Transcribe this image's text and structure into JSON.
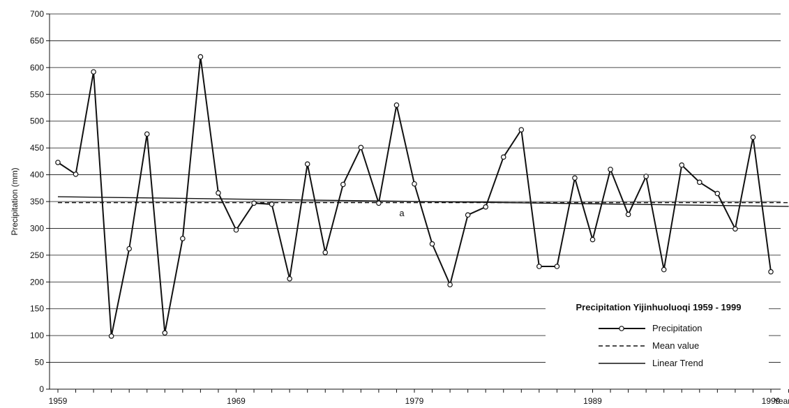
{
  "chart_data": {
    "type": "line",
    "title": "Precipitation Yijinhuoluoqi 1959 - 1999",
    "xlabel": "Year",
    "ylabel": "Precipitation (mm)",
    "ylim": [
      0,
      700
    ],
    "xlim": [
      1959,
      2000
    ],
    "y_ticks": [
      0,
      50,
      100,
      150,
      200,
      250,
      300,
      350,
      400,
      450,
      500,
      550,
      600,
      650,
      700
    ],
    "x_tick_labels": [
      "1959",
      "1969",
      "1979",
      "1989",
      "1999"
    ],
    "grid": "horizontal",
    "legend_position": "bottom-right",
    "annotation": "a",
    "series": [
      {
        "name": "Precipitation",
        "style": "solid-with-circle-markers",
        "x": [
          1959,
          1960,
          1961,
          1962,
          1963,
          1964,
          1965,
          1966,
          1967,
          1968,
          1969,
          1970,
          1971,
          1972,
          1973,
          1974,
          1975,
          1976,
          1977,
          1978,
          1979,
          1980,
          1981,
          1982,
          1983,
          1984,
          1985,
          1986,
          1987,
          1988,
          1989,
          1990,
          1991,
          1992,
          1993,
          1994,
          1995,
          1996,
          1997,
          1998,
          1999
        ],
        "values": [
          423,
          401,
          592,
          99,
          262,
          476,
          105,
          281,
          620,
          366,
          297,
          347,
          345,
          206,
          420,
          255,
          382,
          451,
          347,
          530,
          383,
          271,
          195,
          325,
          340,
          433,
          484,
          229,
          229,
          394,
          279,
          410,
          326,
          397,
          223,
          418,
          386,
          365,
          299,
          470,
          219
        ]
      },
      {
        "name": "Mean value",
        "style": "dashed",
        "x": [
          1959,
          2000
        ],
        "values": [
          348,
          348
        ]
      },
      {
        "name": "Linear Trend",
        "style": "solid",
        "x": [
          1959,
          2000
        ],
        "values": [
          359,
          341
        ]
      }
    ]
  }
}
